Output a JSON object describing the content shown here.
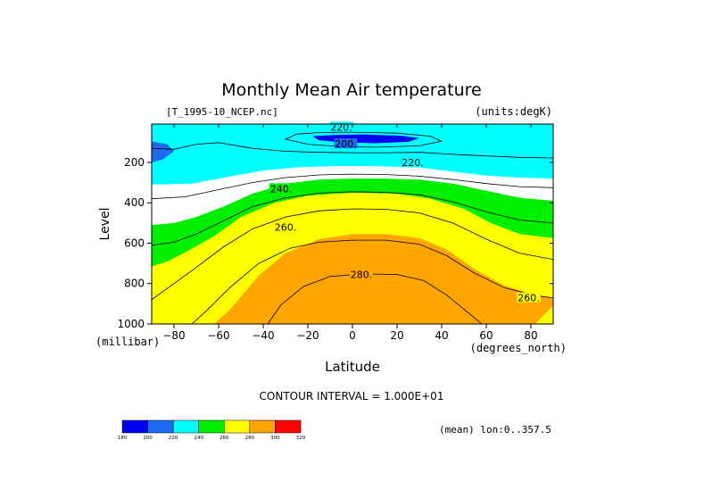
{
  "chart_data": {
    "type": "contour",
    "title": "Monthly Mean Air temperature",
    "file_label": "[T_1995-10_NCEP.nc]",
    "units_label": "(units:degK)",
    "xlabel": "Latitude",
    "x_unit": "(degrees_north)",
    "ylabel": "Level",
    "y_unit": "(millibar)",
    "xlim": [
      -90,
      90
    ],
    "ylim": [
      1000,
      10
    ],
    "x_ticks": [
      -80,
      -60,
      -40,
      -20,
      0,
      20,
      40,
      60,
      80
    ],
    "y_ticks": [
      200,
      400,
      600,
      800,
      1000
    ],
    "contour_interval_text": "CONTOUR INTERVAL = 1.000E+01",
    "mean_note": "(mean) lon:0..357.5",
    "contour_labels": [
      {
        "text": "220.",
        "x": -5,
        "y": 25
      },
      {
        "text": "200.",
        "x": -3,
        "y": 108
      },
      {
        "text": "220.",
        "x": 27,
        "y": 200
      },
      {
        "text": "240.",
        "x": -32,
        "y": 330
      },
      {
        "text": "260.",
        "x": -30,
        "y": 520
      },
      {
        "text": "280.",
        "x": 4,
        "y": 755
      },
      {
        "text": "260.",
        "x": 79,
        "y": 870
      }
    ],
    "color_levels": [
      180,
      200,
      220,
      240,
      260,
      280,
      300,
      320
    ],
    "color_bands": [
      "#0000ee",
      "#1f6bf0",
      "#00ffff",
      "#00ee00",
      "#ffff00",
      "#ffa500",
      "#ff0000"
    ],
    "colorbar_labels": [
      "180",
      "200",
      "220",
      "240",
      "260",
      "280",
      "300",
      "320"
    ],
    "regions": [
      {
        "level": 200,
        "points": [
          [
            -90,
            10
          ],
          [
            -90,
            190
          ],
          [
            -82,
            180
          ],
          [
            -72,
            120
          ],
          [
            -62,
            110
          ],
          [
            -50,
            160
          ],
          [
            -40,
            175
          ],
          [
            -28,
            178
          ],
          [
            -10,
            182
          ],
          [
            10,
            182
          ],
          [
            30,
            182
          ],
          [
            45,
            190
          ],
          [
            60,
            200
          ],
          [
            75,
            210
          ],
          [
            90,
            215
          ],
          [
            90,
            10
          ]
        ]
      },
      {
        "level": 220,
        "points": [
          [
            -90,
            10
          ],
          [
            -90,
            310
          ],
          [
            -72,
            305
          ],
          [
            -55,
            270
          ],
          [
            -40,
            240
          ],
          [
            -25,
            225
          ],
          [
            -10,
            218
          ],
          [
            10,
            218
          ],
          [
            30,
            225
          ],
          [
            45,
            245
          ],
          [
            60,
            265
          ],
          [
            75,
            275
          ],
          [
            90,
            280
          ],
          [
            90,
            10
          ]
        ]
      },
      {
        "level": 240,
        "points": [
          [
            -90,
            510
          ],
          [
            -80,
            500
          ],
          [
            -70,
            470
          ],
          [
            -58,
            420
          ],
          [
            -45,
            355
          ],
          [
            -30,
            305
          ],
          [
            -15,
            285
          ],
          [
            0,
            280
          ],
          [
            15,
            280
          ],
          [
            30,
            285
          ],
          [
            45,
            305
          ],
          [
            60,
            340
          ],
          [
            75,
            375
          ],
          [
            90,
            390
          ],
          [
            90,
            1000
          ],
          [
            -90,
            1000
          ]
        ]
      },
      {
        "level": 260,
        "points": [
          [
            -90,
            715
          ],
          [
            -83,
            690
          ],
          [
            -75,
            645
          ],
          [
            -62,
            565
          ],
          [
            -50,
            470
          ],
          [
            -35,
            400
          ],
          [
            -20,
            365
          ],
          [
            0,
            350
          ],
          [
            20,
            355
          ],
          [
            35,
            380
          ],
          [
            50,
            430
          ],
          [
            62,
            500
          ],
          [
            75,
            555
          ],
          [
            90,
            575
          ],
          [
            90,
            1000
          ],
          [
            -90,
            1000
          ]
        ]
      },
      {
        "level": 280,
        "points": [
          [
            -62,
            1000
          ],
          [
            -55,
            930
          ],
          [
            -42,
            760
          ],
          [
            -30,
            650
          ],
          [
            -15,
            580
          ],
          [
            0,
            555
          ],
          [
            15,
            555
          ],
          [
            30,
            575
          ],
          [
            42,
            630
          ],
          [
            55,
            730
          ],
          [
            68,
            810
          ],
          [
            82,
            855
          ],
          [
            90,
            870
          ],
          [
            90,
            1000
          ]
        ]
      },
      {
        "level": 290,
        "points": [
          [
            -38,
            1000
          ],
          [
            -32,
            900
          ],
          [
            -22,
            810
          ],
          [
            -10,
            760
          ],
          [
            5,
            750
          ],
          [
            20,
            752
          ],
          [
            32,
            780
          ],
          [
            42,
            850
          ],
          [
            52,
            940
          ],
          [
            58,
            1000
          ]
        ]
      },
      {
        "level": 200,
        "points": [
          [
            -90,
            95
          ],
          [
            -90,
            200
          ],
          [
            -85,
            185
          ],
          [
            -80,
            145
          ],
          [
            -83,
            110
          ],
          [
            -88,
            100
          ]
        ]
      },
      {
        "level": 180,
        "points": [
          [
            -18,
            70
          ],
          [
            -15,
            90
          ],
          [
            -5,
            100
          ],
          [
            10,
            105
          ],
          [
            25,
            98
          ],
          [
            30,
            80
          ],
          [
            22,
            68
          ],
          [
            5,
            62
          ],
          [
            -8,
            64
          ]
        ]
      },
      {
        "level": 260,
        "points": [
          [
            82,
            1000
          ],
          [
            88,
            930
          ],
          [
            90,
            910
          ],
          [
            90,
            1000
          ]
        ]
      },
      {
        "level": 220,
        "points": [
          [
            74,
            155
          ],
          [
            78,
            160
          ],
          [
            82,
            158
          ],
          [
            78,
            152
          ]
        ]
      }
    ],
    "contour_lines": [
      [
        [
          -90,
          130
        ],
        [
          -80,
          135
        ],
        [
          -70,
          110
        ],
        [
          -60,
          102
        ],
        [
          -45,
          130
        ],
        [
          -30,
          145
        ],
        [
          -15,
          150
        ],
        [
          0,
          152
        ],
        [
          15,
          152
        ],
        [
          30,
          150
        ],
        [
          45,
          160
        ],
        [
          60,
          168
        ],
        [
          75,
          175
        ],
        [
          90,
          178
        ]
      ],
      [
        [
          -25,
          60
        ],
        [
          -30,
          85
        ],
        [
          -20,
          110
        ],
        [
          -5,
          122
        ],
        [
          10,
          125
        ],
        [
          30,
          118
        ],
        [
          40,
          95
        ],
        [
          35,
          70
        ],
        [
          20,
          55
        ],
        [
          0,
          50
        ],
        [
          -15,
          52
        ],
        [
          -25,
          60
        ]
      ],
      [
        [
          -90,
          380
        ],
        [
          -75,
          370
        ],
        [
          -60,
          335
        ],
        [
          -45,
          300
        ],
        [
          -30,
          275
        ],
        [
          -15,
          262
        ],
        [
          0,
          258
        ],
        [
          15,
          260
        ],
        [
          30,
          268
        ],
        [
          45,
          285
        ],
        [
          60,
          305
        ],
        [
          75,
          320
        ],
        [
          90,
          325
        ]
      ],
      [
        [
          -90,
          610
        ],
        [
          -80,
          595
        ],
        [
          -70,
          555
        ],
        [
          -58,
          490
        ],
        [
          -45,
          420
        ],
        [
          -30,
          375
        ],
        [
          -15,
          352
        ],
        [
          0,
          345
        ],
        [
          15,
          348
        ],
        [
          30,
          360
        ],
        [
          45,
          395
        ],
        [
          60,
          445
        ],
        [
          75,
          485
        ],
        [
          90,
          500
        ]
      ],
      [
        [
          -90,
          880
        ],
        [
          -80,
          800
        ],
        [
          -70,
          720
        ],
        [
          -58,
          620
        ],
        [
          -45,
          530
        ],
        [
          -30,
          470
        ],
        [
          -15,
          440
        ],
        [
          0,
          430
        ],
        [
          15,
          432
        ],
        [
          30,
          450
        ],
        [
          45,
          500
        ],
        [
          60,
          580
        ],
        [
          75,
          650
        ],
        [
          90,
          680
        ]
      ],
      [
        [
          -72,
          1000
        ],
        [
          -65,
          930
        ],
        [
          -55,
          820
        ],
        [
          -42,
          700
        ],
        [
          -28,
          625
        ],
        [
          -15,
          595
        ],
        [
          0,
          585
        ],
        [
          15,
          585
        ],
        [
          30,
          605
        ],
        [
          42,
          660
        ],
        [
          55,
          750
        ],
        [
          68,
          820
        ],
        [
          82,
          860
        ],
        [
          90,
          870
        ]
      ],
      [
        [
          -38,
          1000
        ],
        [
          -32,
          905
        ],
        [
          -22,
          815
        ],
        [
          -10,
          765
        ],
        [
          5,
          752
        ],
        [
          20,
          755
        ],
        [
          32,
          785
        ],
        [
          42,
          855
        ],
        [
          52,
          945
        ],
        [
          58,
          1000
        ]
      ]
    ]
  }
}
